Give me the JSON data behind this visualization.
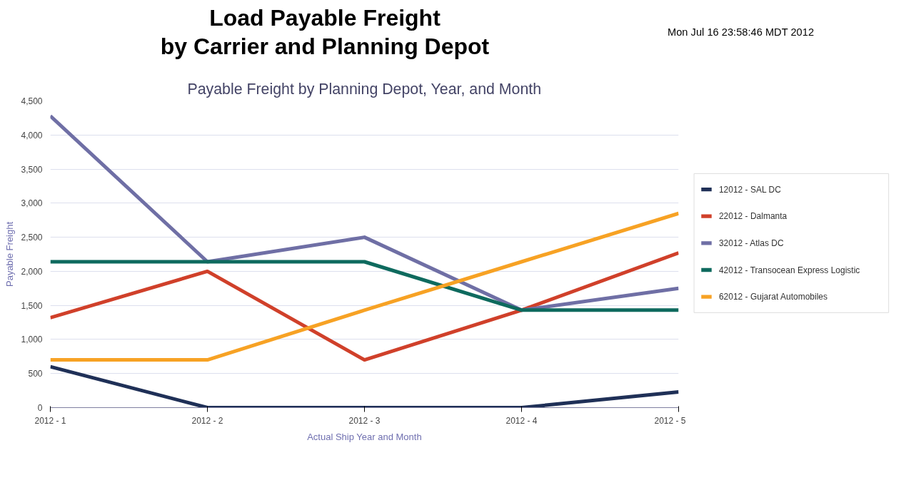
{
  "chart_data": {
    "type": "line",
    "title": "Load Payable Freight\nby Carrier and Planning Depot",
    "subtitle": "Payable Freight by Planning Depot, Year, and Month",
    "xlabel": "Actual Ship Year and Month",
    "ylabel": "Payable Freight",
    "annotations": [
      "Mon Jul 16 23:58:46 MDT 2012"
    ],
    "categories": [
      "2012 - 1",
      "2012 - 2",
      "2012 - 3",
      "2012 - 4",
      "2012 - 5"
    ],
    "series": [
      {
        "name": "12012 - SAL DC",
        "color": "#1f3057",
        "values": [
          600,
          0,
          0,
          0,
          230
        ]
      },
      {
        "name": "22012 - Dalmanta",
        "color": "#d0402a",
        "values": [
          1320,
          2000,
          700,
          1430,
          2270
        ]
      },
      {
        "name": "32012 - Atlas DC",
        "color": "#6f6fa5",
        "values": [
          4280,
          2140,
          2500,
          1430,
          1750
        ]
      },
      {
        "name": "42012 - Transocean Express Logistic",
        "color": "#0e6a5e",
        "values": [
          2140,
          2140,
          2140,
          1430,
          1430
        ]
      },
      {
        "name": "62012 - Gujarat Automobiles",
        "color": "#f7a224",
        "values": [
          700,
          700,
          1430,
          2140,
          2850
        ]
      }
    ],
    "ylim": [
      0,
      4500
    ],
    "yticks": [
      {
        "value": 0,
        "label": "0"
      },
      {
        "value": 500,
        "label": "500"
      },
      {
        "value": 1000,
        "label": "1,000"
      },
      {
        "value": 1500,
        "label": "1,500"
      },
      {
        "value": 2000,
        "label": "2,000"
      },
      {
        "value": 2500,
        "label": "2,500"
      },
      {
        "value": 3000,
        "label": "3,000"
      },
      {
        "value": 3500,
        "label": "3,500"
      },
      {
        "value": 4000,
        "label": "4,000"
      },
      {
        "value": 4500,
        "label": "4,500"
      }
    ],
    "grid": "y",
    "legend": "right",
    "marker": "none",
    "line_style": "solid"
  }
}
